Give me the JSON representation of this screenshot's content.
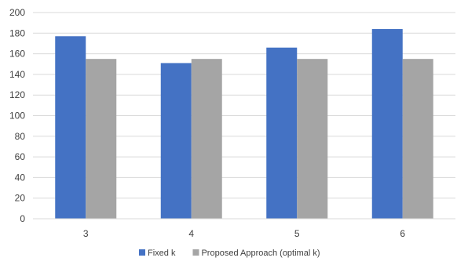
{
  "chart_data": {
    "type": "bar",
    "categories": [
      "3",
      "4",
      "5",
      "6"
    ],
    "series": [
      {
        "name": "Fixed k",
        "values": [
          177,
          151,
          166,
          184
        ],
        "color": "#4472C4"
      },
      {
        "name": "Proposed Approach (optimal k)",
        "values": [
          155,
          155,
          155,
          155
        ],
        "color": "#A5A5A5"
      }
    ],
    "ylim": [
      0,
      200
    ],
    "yticks": [
      0,
      20,
      40,
      60,
      80,
      100,
      120,
      140,
      160,
      180,
      200
    ],
    "grid": true,
    "legend_position": "bottom"
  }
}
